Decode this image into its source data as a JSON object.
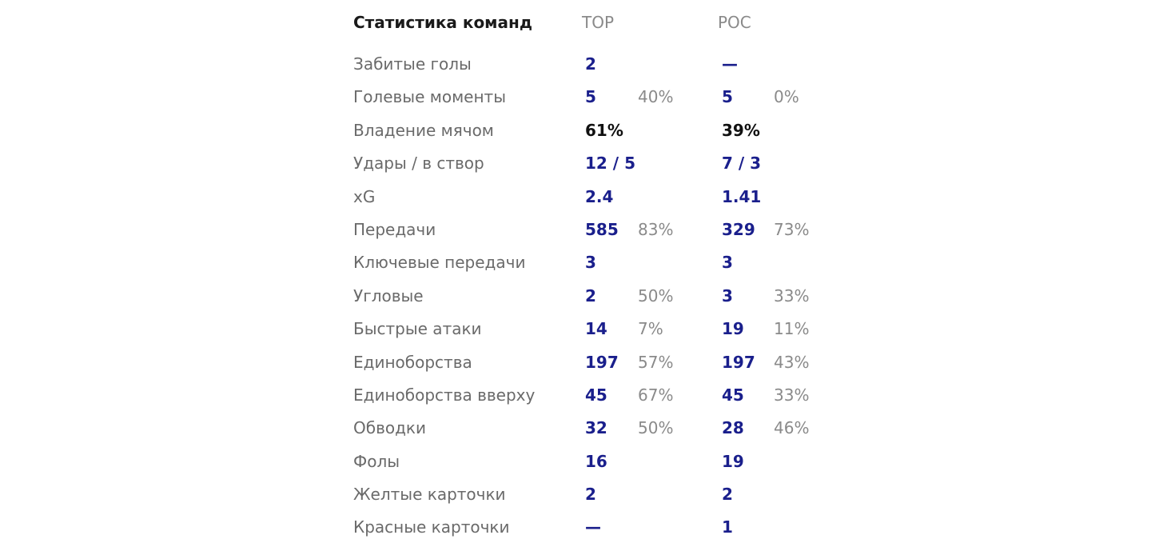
{
  "header": {
    "title": "Статистика команд",
    "home_team": "TOP",
    "away_team": "POC"
  },
  "rows": [
    {
      "label": "Забитые голы",
      "home": "2",
      "home_pct": "",
      "away": "—",
      "away_pct": ""
    },
    {
      "label": "Голевые моменты",
      "home": "5",
      "home_pct": "40%",
      "away": "5",
      "away_pct": "0%"
    },
    {
      "label": "Владение мячом",
      "home": "61%",
      "home_pct": "",
      "away": "39%",
      "away_pct": ""
    },
    {
      "label": "Удары / в створ",
      "home": "12 / 5",
      "home_pct": "",
      "away": "7 / 3",
      "away_pct": ""
    },
    {
      "label": "xG",
      "home": "2.4",
      "home_pct": "",
      "away": "1.41",
      "away_pct": ""
    },
    {
      "label": "Передачи",
      "home": "585",
      "home_pct": "83%",
      "away": "329",
      "away_pct": "73%"
    },
    {
      "label": "Ключевые передачи",
      "home": "3",
      "home_pct": "",
      "away": "3",
      "away_pct": ""
    },
    {
      "label": "Угловые",
      "home": "2",
      "home_pct": "50%",
      "away": "3",
      "away_pct": "33%"
    },
    {
      "label": "Быстрые атаки",
      "home": "14",
      "home_pct": "7%",
      "away": "19",
      "away_pct": "11%"
    },
    {
      "label": "Единоборства",
      "home": "197",
      "home_pct": "57%",
      "away": "197",
      "away_pct": "43%"
    },
    {
      "label": "Единоборства вверху",
      "home": "45",
      "home_pct": "67%",
      "away": "45",
      "away_pct": "33%"
    },
    {
      "label": "Обводки",
      "home": "32",
      "home_pct": "50%",
      "away": "28",
      "away_pct": "46%"
    },
    {
      "label": "Фолы",
      "home": "16",
      "home_pct": "",
      "away": "19",
      "away_pct": ""
    },
    {
      "label": "Желтые карточки",
      "home": "2",
      "home_pct": "",
      "away": "2",
      "away_pct": ""
    },
    {
      "label": "Красные карточки",
      "home": "—",
      "home_pct": "",
      "away": "1",
      "away_pct": ""
    }
  ],
  "colors": {
    "value": "#1a1f8c",
    "possession": "#111111",
    "label": "#6a6a6a",
    "muted": "#8a8a8a"
  }
}
